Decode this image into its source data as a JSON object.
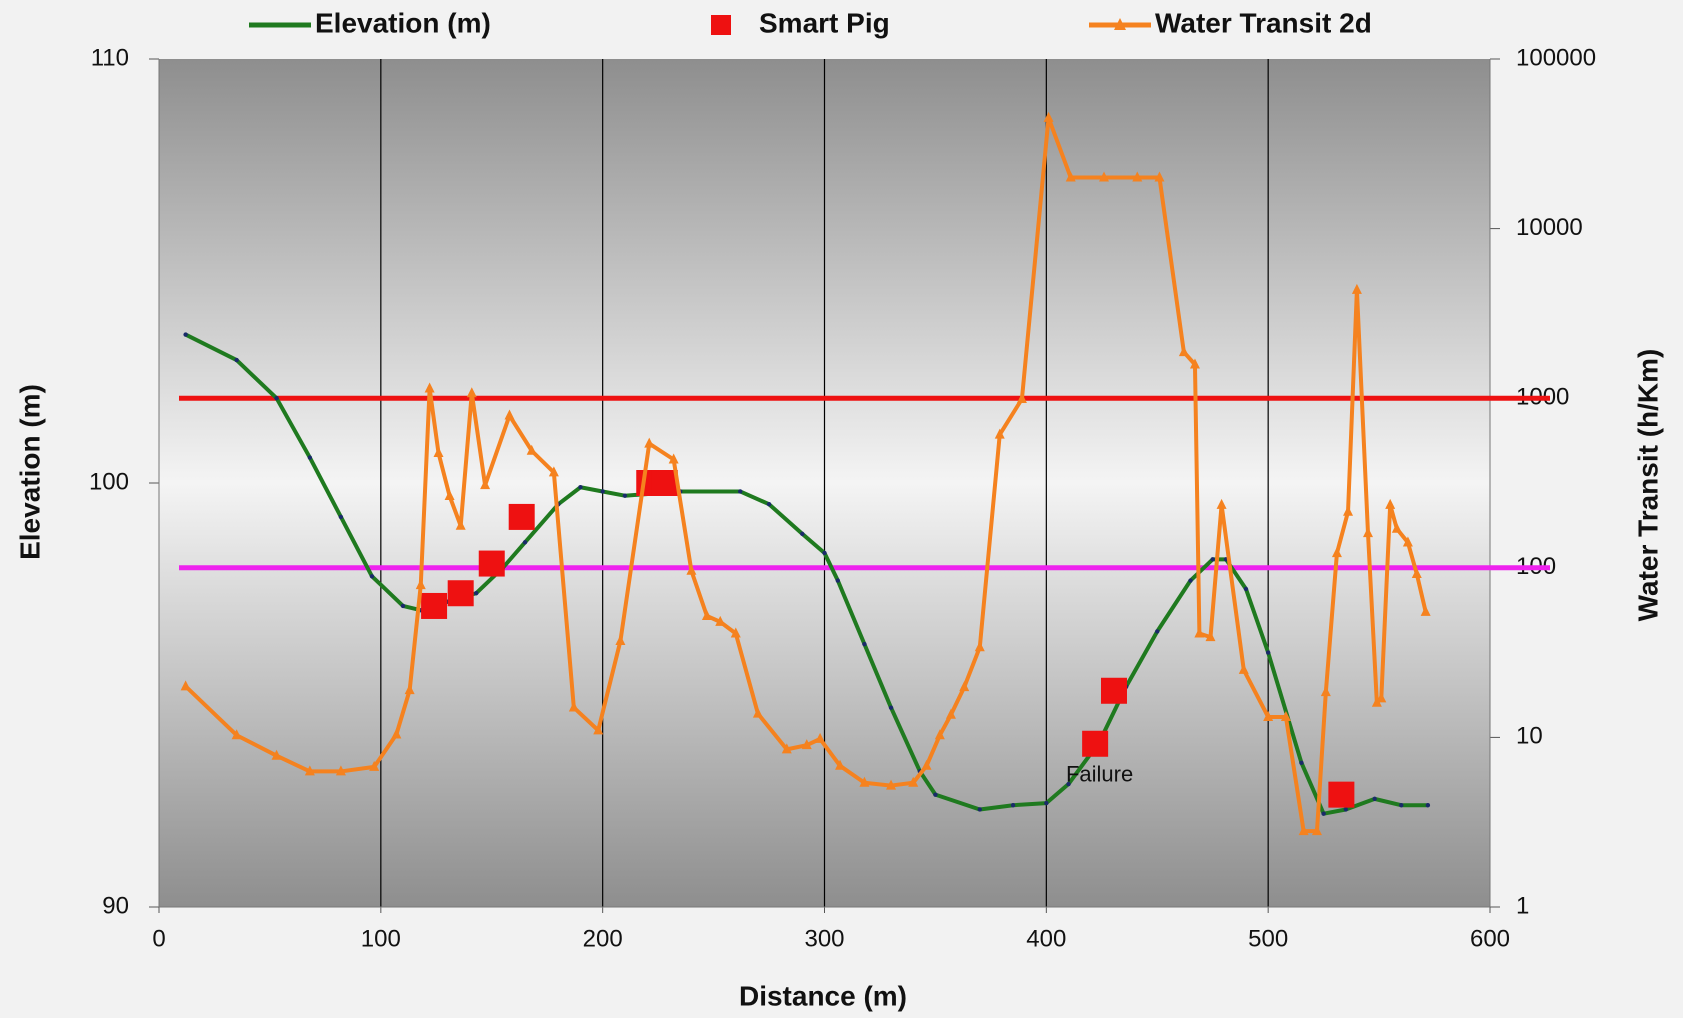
{
  "chart_data": {
    "type": "line",
    "xlabel": "Distance (m)",
    "ylabel": "Elevation (m)",
    "y2label": "Water Transit (h/Km)",
    "xlim": [
      0,
      600
    ],
    "xticks": [
      0,
      100,
      200,
      300,
      400,
      500,
      600
    ],
    "ylim": [
      90,
      110
    ],
    "yticks": [
      90,
      100,
      110
    ],
    "y2lim": [
      1,
      100000
    ],
    "y2ticks": [
      1,
      10,
      100,
      1000,
      10000,
      100000
    ],
    "y2log": true,
    "grid": "x",
    "series": [
      {
        "name": "Elevation (m)",
        "color": "#1f7a1f",
        "style": "line",
        "x": [
          12,
          35,
          53,
          68,
          82,
          96,
          110,
          118,
          130,
          143,
          155,
          165,
          180,
          190,
          200,
          210,
          235,
          262,
          275,
          290,
          300,
          306,
          318,
          330,
          343,
          350,
          370,
          385,
          400,
          410,
          424,
          436,
          450,
          465,
          475,
          481,
          490,
          500,
          515,
          525,
          535,
          548,
          560,
          572
        ],
        "values": [
          103.5,
          102.9,
          102.0,
          100.6,
          99.2,
          97.8,
          97.1,
          97.0,
          97.2,
          97.4,
          98.0,
          98.6,
          99.5,
          99.9,
          99.8,
          99.7,
          99.8,
          99.8,
          99.5,
          98.8,
          98.35,
          97.7,
          96.2,
          94.7,
          93.2,
          92.65,
          92.3,
          92.4,
          92.45,
          92.9,
          93.9,
          95.2,
          96.5,
          97.7,
          98.2,
          98.2,
          97.5,
          96.0,
          93.4,
          92.2,
          92.3,
          92.55,
          92.4,
          92.4
        ]
      },
      {
        "name": "Smart Pig",
        "color": "#ee1111",
        "style": "markers",
        "x": [
          124,
          136,
          150,
          163.5,
          221,
          228,
          422,
          430.5,
          533
        ],
        "values": [
          97.1,
          97.4,
          98.1,
          99.2,
          100,
          100,
          93.85,
          95.1,
          92.65
        ]
      },
      {
        "name": "Water Transit 2d",
        "color": "#f5821f",
        "style": "line",
        "axis": "y2",
        "x": [
          12,
          35,
          53,
          68,
          82,
          97,
          107,
          113,
          118,
          122,
          126,
          131,
          136,
          141,
          147,
          158,
          168,
          178,
          187,
          198,
          208,
          221,
          232,
          240,
          247,
          253,
          260,
          270,
          283,
          292,
          298,
          307,
          318,
          330,
          340,
          346,
          352,
          357,
          363,
          370,
          379,
          389,
          401,
          411,
          426,
          441,
          451,
          462,
          467,
          469,
          474,
          479,
          489,
          500,
          508,
          516,
          522,
          526,
          531,
          536,
          540,
          545,
          549,
          551,
          555,
          558,
          563,
          567,
          571
        ],
        "values": [
          20,
          10.3,
          7.8,
          6.3,
          6.3,
          6.7,
          10.4,
          19,
          79,
          1140,
          475,
          265,
          177,
          1070,
          307,
          790,
          490,
          365,
          15,
          11,
          37,
          540,
          435,
          96,
          52,
          48,
          41,
          13.8,
          8.5,
          9.0,
          9.8,
          6.8,
          5.4,
          5.2,
          5.4,
          6.8,
          10.3,
          13.6,
          19.8,
          34,
          610,
          990,
          45000,
          20000,
          20000,
          20000,
          20000,
          1870,
          1580,
          41,
          39,
          235,
          25,
          13.2,
          13.2,
          2.8,
          2.8,
          18.5,
          122,
          214,
          4350,
          160,
          16,
          17,
          235,
          170,
          141,
          92,
          55
        ]
      }
    ],
    "reference_lines": [
      {
        "value": 1000,
        "color": "#ee1111",
        "axis": "y2"
      },
      {
        "value": 100,
        "color": "#ee22ee",
        "axis": "y2"
      }
    ],
    "annotations": [
      {
        "text": "Failure",
        "x": 424,
        "y": 93.1
      }
    ]
  }
}
